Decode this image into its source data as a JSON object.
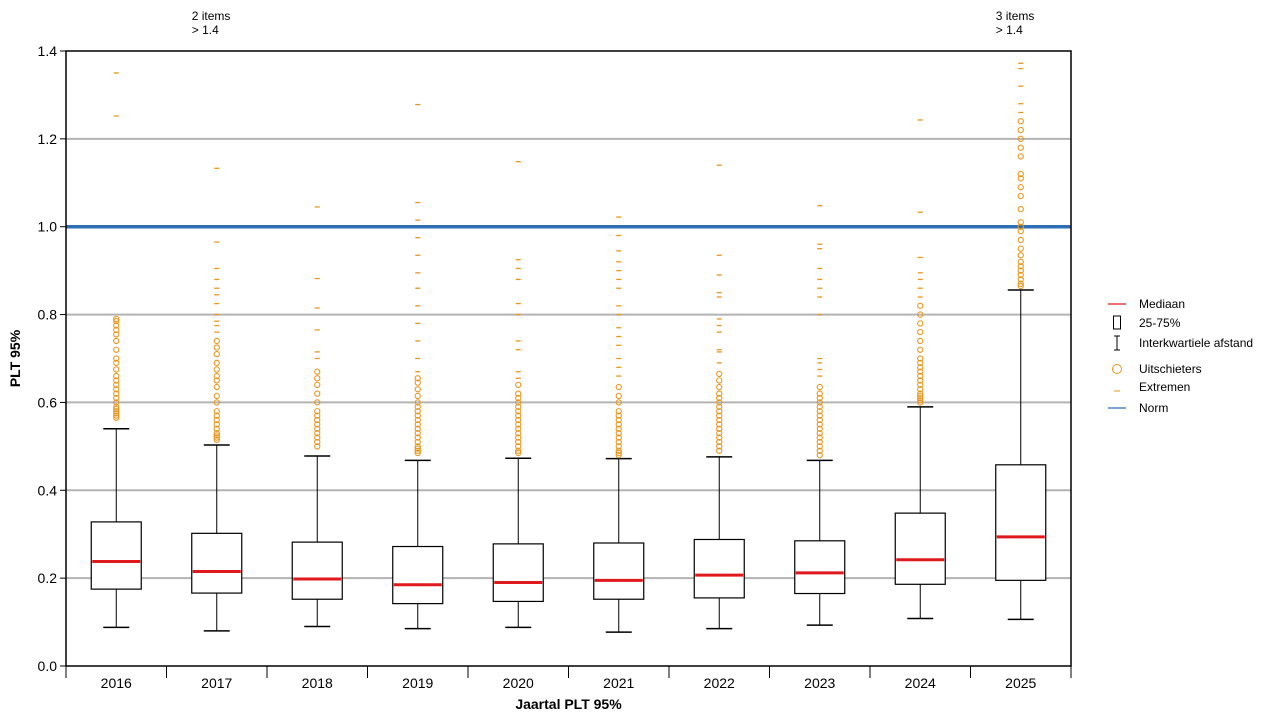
{
  "chart_data": {
    "type": "box",
    "xlabel": "Jaartal PLT 95%",
    "ylabel": "PLT 95%",
    "ylim": [
      0,
      1.4
    ],
    "yticks": [
      "0.0",
      "0.2",
      "0.4",
      "0.6",
      "0.8",
      "1.0",
      "1.2",
      "1.4"
    ],
    "grid": true,
    "norm": 1.0,
    "categories": [
      "2016",
      "2017",
      "2018",
      "2019",
      "2020",
      "2021",
      "2022",
      "2023",
      "2024",
      "2025"
    ],
    "boxes": [
      {
        "year": "2016",
        "whisker_low": 0.088,
        "q1": 0.175,
        "median": 0.238,
        "q3": 0.328,
        "whisker_high": 0.54,
        "outliers": [
          0.565,
          0.57,
          0.575,
          0.58,
          0.585,
          0.59,
          0.6,
          0.61,
          0.62,
          0.63,
          0.64,
          0.65,
          0.66,
          0.675,
          0.69,
          0.7,
          0.72,
          0.74,
          0.755,
          0.765,
          0.775,
          0.785,
          0.79
        ],
        "extremes": [
          1.252,
          1.35
        ]
      },
      {
        "year": "2017",
        "whisker_low": 0.08,
        "q1": 0.166,
        "median": 0.215,
        "q3": 0.302,
        "whisker_high": 0.503,
        "outliers": [
          0.515,
          0.52,
          0.525,
          0.53,
          0.54,
          0.55,
          0.56,
          0.57,
          0.58,
          0.6,
          0.615,
          0.635,
          0.65,
          0.66,
          0.675,
          0.69,
          0.71,
          0.725,
          0.74
        ],
        "extremes": [
          0.76,
          0.775,
          0.785,
          0.8,
          0.825,
          0.845,
          0.86,
          0.88,
          0.905,
          0.965,
          1.133
        ]
      },
      {
        "year": "2018",
        "whisker_low": 0.09,
        "q1": 0.152,
        "median": 0.198,
        "q3": 0.282,
        "whisker_high": 0.478,
        "outliers": [
          0.5,
          0.51,
          0.52,
          0.53,
          0.54,
          0.55,
          0.56,
          0.57,
          0.58,
          0.6,
          0.62,
          0.64,
          0.655,
          0.67
        ],
        "extremes": [
          0.7,
          0.715,
          0.765,
          0.815,
          0.882,
          1.045
        ]
      },
      {
        "year": "2019",
        "whisker_low": 0.085,
        "q1": 0.142,
        "median": 0.185,
        "q3": 0.272,
        "whisker_high": 0.468,
        "outliers": [
          0.485,
          0.49,
          0.495,
          0.5,
          0.51,
          0.52,
          0.53,
          0.54,
          0.55,
          0.56,
          0.57,
          0.58,
          0.59,
          0.6,
          0.615,
          0.63,
          0.645,
          0.655
        ],
        "extremes": [
          0.67,
          0.7,
          0.74,
          0.78,
          0.82,
          0.86,
          0.895,
          0.935,
          0.975,
          1.015,
          1.055,
          1.278
        ]
      },
      {
        "year": "2020",
        "whisker_low": 0.088,
        "q1": 0.147,
        "median": 0.19,
        "q3": 0.278,
        "whisker_high": 0.473,
        "outliers": [
          0.485,
          0.49,
          0.5,
          0.51,
          0.52,
          0.53,
          0.54,
          0.55,
          0.56,
          0.57,
          0.58,
          0.59,
          0.6,
          0.61,
          0.62,
          0.64
        ],
        "extremes": [
          0.655,
          0.67,
          0.72,
          0.74,
          0.8,
          0.825,
          0.88,
          0.905,
          0.925,
          1.148
        ]
      },
      {
        "year": "2021",
        "whisker_low": 0.077,
        "q1": 0.152,
        "median": 0.195,
        "q3": 0.28,
        "whisker_high": 0.472,
        "outliers": [
          0.48,
          0.485,
          0.49,
          0.5,
          0.51,
          0.52,
          0.53,
          0.54,
          0.55,
          0.56,
          0.57,
          0.58,
          0.6,
          0.615,
          0.635
        ],
        "extremes": [
          0.66,
          0.68,
          0.7,
          0.73,
          0.75,
          0.77,
          0.8,
          0.82,
          0.86,
          0.88,
          0.9,
          0.92,
          0.945,
          0.98,
          1.022
        ]
      },
      {
        "year": "2022",
        "whisker_low": 0.085,
        "q1": 0.155,
        "median": 0.207,
        "q3": 0.288,
        "whisker_high": 0.476,
        "outliers": [
          0.49,
          0.5,
          0.51,
          0.52,
          0.53,
          0.54,
          0.55,
          0.56,
          0.57,
          0.58,
          0.59,
          0.6,
          0.61,
          0.62,
          0.635,
          0.65,
          0.665
        ],
        "extremes": [
          0.69,
          0.715,
          0.72,
          0.76,
          0.775,
          0.79,
          0.84,
          0.85,
          0.89,
          0.935,
          1.14
        ]
      },
      {
        "year": "2023",
        "whisker_low": 0.093,
        "q1": 0.165,
        "median": 0.212,
        "q3": 0.285,
        "whisker_high": 0.468,
        "outliers": [
          0.48,
          0.49,
          0.5,
          0.51,
          0.52,
          0.53,
          0.54,
          0.55,
          0.56,
          0.57,
          0.58,
          0.59,
          0.6,
          0.61,
          0.62,
          0.635
        ],
        "extremes": [
          0.66,
          0.675,
          0.69,
          0.7,
          0.8,
          0.84,
          0.86,
          0.88,
          0.905,
          0.95,
          0.96,
          1.048
        ]
      },
      {
        "year": "2024",
        "whisker_low": 0.108,
        "q1": 0.186,
        "median": 0.242,
        "q3": 0.348,
        "whisker_high": 0.59,
        "outliers": [
          0.6,
          0.605,
          0.61,
          0.615,
          0.62,
          0.63,
          0.64,
          0.65,
          0.66,
          0.67,
          0.68,
          0.69,
          0.7,
          0.72,
          0.74,
          0.76,
          0.78,
          0.8,
          0.82
        ],
        "extremes": [
          0.84,
          0.86,
          0.88,
          0.895,
          0.93,
          1.033,
          1.243
        ]
      },
      {
        "year": "2025",
        "whisker_low": 0.106,
        "q1": 0.195,
        "median": 0.294,
        "q3": 0.458,
        "whisker_high": 0.856,
        "outliers": [
          0.865,
          0.87,
          0.88,
          0.89,
          0.9,
          0.91,
          0.92,
          0.935,
          0.95,
          0.97,
          0.99,
          1.0,
          1.01,
          1.04,
          1.07,
          1.09,
          1.11,
          1.12,
          1.16,
          1.18,
          1.2,
          1.22,
          1.24
        ],
        "extremes": [
          1.26,
          1.28,
          1.32,
          1.36,
          1.372
        ]
      }
    ],
    "overflow_notes": [
      {
        "year": "2017",
        "line1": "2 items",
        "line2": "> 1.4"
      },
      {
        "year": "2025",
        "line1": "3 items",
        "line2": "> 1.4"
      }
    ],
    "legend": [
      {
        "key": "median",
        "label": "Mediaan"
      },
      {
        "key": "box",
        "label": "25-75%"
      },
      {
        "key": "whisker",
        "label": "Interkwartiele afstand"
      },
      {
        "key": "outlier",
        "label": "Uitschieters"
      },
      {
        "key": "extreme",
        "label": "Extremen"
      },
      {
        "key": "norm",
        "label": "Norm"
      }
    ],
    "legend_position": "right",
    "colors": {
      "median": "#e0191d",
      "outlier": "#e8961e",
      "norm": "#2c6fb4",
      "grid": "#b3b3b3",
      "box": "#000000"
    }
  }
}
